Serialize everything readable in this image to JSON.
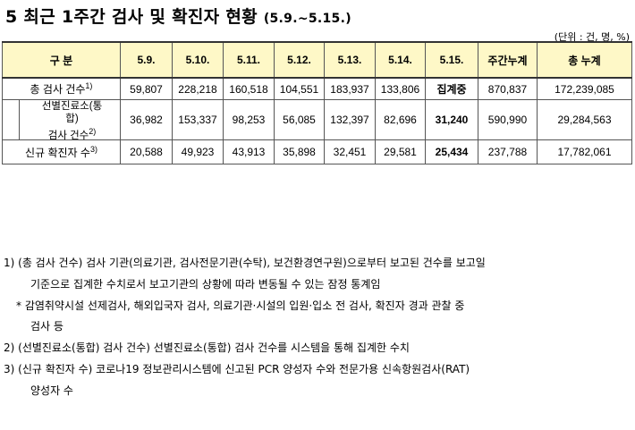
{
  "title": "5 최근 1주간 검사 및 확진자 현황",
  "title_period": "(5.9.~5.15.)",
  "unit": "(단위 : 건, 명, %)",
  "table": {
    "headers": [
      "구 분",
      "5.9.",
      "5.10.",
      "5.11.",
      "5.12.",
      "5.13.",
      "5.14.",
      "5.15.",
      "주간누계",
      "총 누계"
    ],
    "rows": [
      {
        "label": "총 검사 건수",
        "note": "1)",
        "values": [
          "59,807",
          "228,218",
          "160,518",
          "104,551",
          "183,937",
          "133,806",
          "집계중",
          "870,837",
          "172,239,085"
        ]
      },
      {
        "label_line1": "선별진료소(통",
        "label_line2": "합)",
        "label_line3": "검사 건수",
        "note": "2)",
        "values": [
          "36,982",
          "153,337",
          "98,253",
          "56,085",
          "132,397",
          "82,696",
          "31,240",
          "590,990",
          "29,284,563"
        ]
      },
      {
        "label": "신규 확진자 수",
        "note": "3)",
        "values": [
          "20,588",
          "49,923",
          "43,913",
          "35,898",
          "32,451",
          "29,581",
          "25,434",
          "237,788",
          "17,782,061"
        ]
      }
    ]
  },
  "notes": {
    "n1_line1": "1) (총 검사 건수) 검사 기관(의료기관, 검사전문기관(수탁), 보건환경연구원)으로부터 보고된 건수를 보고일",
    "n1_line2": "기준으로 집계한 수치로서 보고기관의 상황에 따라 변동될 수 있는 잠정 통계임",
    "star_line1": "* 감염취약시설 선제검사, 해외입국자 검사, 의료기관·시설의 입원·입소 전 검사, 확진자 경과 관찰 중",
    "star_line2": "검사 등",
    "n2": "2) (선별진료소(통합) 검사 건수) 선별진료소(통합) 검사 건수를 시스템을 통해 집계한 수치",
    "n3_line1": "3) (신규 확진자 수) 코로나19 정보관리시스템에 신고된 PCR 양성자 수와 전문가용 신속항원검사(RAT)",
    "n3_line2": "양성자 수"
  }
}
